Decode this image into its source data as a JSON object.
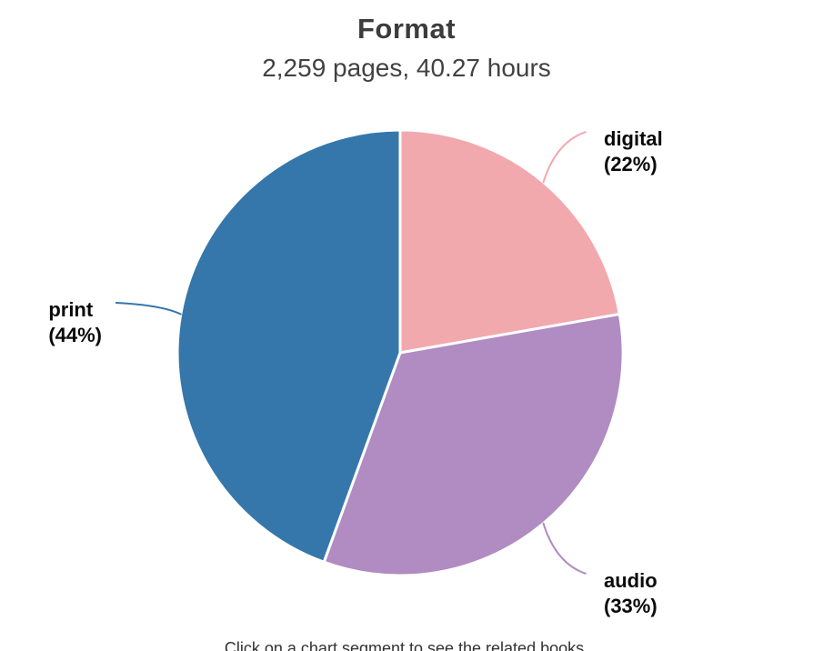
{
  "header": {
    "title": "Format",
    "subtitle": "2,259 pages, 40.27 hours"
  },
  "chart_data": {
    "type": "pie",
    "title": "Format",
    "subtitle": "2,259 pages, 40.27 hours",
    "direction": "clockwise",
    "start_angle_deg": 0,
    "slices": [
      {
        "label": "digital",
        "percent": 22,
        "color": "#f2a9ae"
      },
      {
        "label": "audio",
        "percent": 33,
        "color": "#b08cc2"
      },
      {
        "label": "print",
        "percent": 44,
        "color": "#3577ab"
      }
    ],
    "slice_border_color": "#ffffff",
    "label_text_color": "#0a0a0a",
    "background": "#ffffff",
    "legend": "none",
    "label_style": "outside-with-leader-lines"
  },
  "footer": {
    "caption": "Click on a chart segment to see the related books."
  }
}
